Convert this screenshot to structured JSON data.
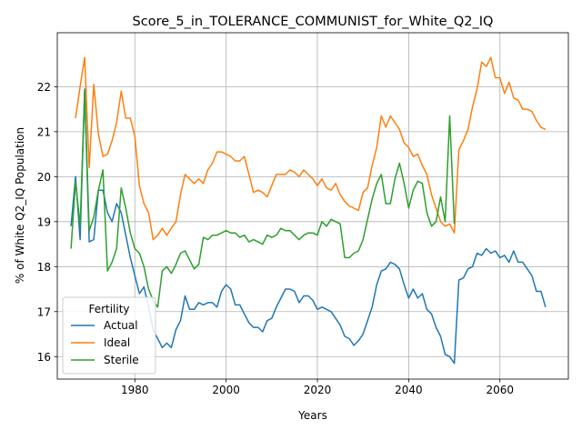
{
  "chart_data": {
    "type": "line",
    "title": "Score_5_in_TOLERANCE_COMMUNIST_for_White_Q2_IQ",
    "xlabel": "Years",
    "ylabel": "% of White Q2_IQ Population",
    "xlim": [
      1963,
      2075
    ],
    "ylim": [
      15.5,
      23.2
    ],
    "x_ticks": [
      1980,
      2000,
      2020,
      2040,
      2060
    ],
    "y_ticks": [
      16,
      17,
      18,
      19,
      20,
      21,
      22
    ],
    "grid": true,
    "legend": {
      "title": "Fertility",
      "position": "lower-left"
    },
    "series": [
      {
        "name": "Actual",
        "color": "#1f77b4",
        "x": [
          1966,
          1967,
          1968,
          1969,
          1970,
          1971,
          1972,
          1973,
          1974,
          1975,
          1976,
          1977,
          1978,
          1979,
          1980,
          1981,
          1982,
          1983,
          1984,
          1985,
          1986,
          1987,
          1988,
          1989,
          1990,
          1991,
          1992,
          1993,
          1994,
          1995,
          1996,
          1997,
          1998,
          1999,
          2000,
          2001,
          2002,
          2003,
          2004,
          2005,
          2006,
          2007,
          2008,
          2009,
          2010,
          2011,
          2012,
          2013,
          2014,
          2015,
          2016,
          2017,
          2018,
          2019,
          2020,
          2021,
          2022,
          2023,
          2024,
          2025,
          2026,
          2027,
          2028,
          2029,
          2030,
          2031,
          2032,
          2033,
          2034,
          2035,
          2036,
          2037,
          2038,
          2039,
          2040,
          2041,
          2042,
          2043,
          2044,
          2045,
          2046,
          2047,
          2048,
          2049,
          2050,
          2051,
          2052,
          2053,
          2054,
          2055,
          2056,
          2057,
          2058,
          2059,
          2060,
          2061,
          2062,
          2063,
          2064,
          2065,
          2066,
          2067,
          2068,
          2069,
          2070
        ],
        "y": [
          18.9,
          20.0,
          18.6,
          21.95,
          18.55,
          18.6,
          19.7,
          19.7,
          19.2,
          19.0,
          19.4,
          19.2,
          18.7,
          18.2,
          17.8,
          17.4,
          17.55,
          17.1,
          16.6,
          16.4,
          16.2,
          16.3,
          16.2,
          16.6,
          16.8,
          17.35,
          17.05,
          17.05,
          17.2,
          17.15,
          17.2,
          17.2,
          17.1,
          17.45,
          17.6,
          17.5,
          17.15,
          17.15,
          16.95,
          16.75,
          16.65,
          16.65,
          16.55,
          16.8,
          16.85,
          17.1,
          17.3,
          17.5,
          17.5,
          17.45,
          17.2,
          17.35,
          17.35,
          17.25,
          17.05,
          17.1,
          17.05,
          17.0,
          16.85,
          16.7,
          16.45,
          16.4,
          16.25,
          16.35,
          16.5,
          16.8,
          17.1,
          17.6,
          17.9,
          17.95,
          18.1,
          18.05,
          17.95,
          17.6,
          17.3,
          17.5,
          17.3,
          17.4,
          17.05,
          16.95,
          16.65,
          16.45,
          16.05,
          16.0,
          15.85,
          17.7,
          17.75,
          17.95,
          18.0,
          18.3,
          18.25,
          18.4,
          18.3,
          18.35,
          18.2,
          18.25,
          18.1,
          18.35,
          18.1,
          18.1,
          17.95,
          17.8,
          17.45,
          17.45,
          17.1
        ]
      },
      {
        "name": "Ideal",
        "color": "#ff7f0e",
        "x": [
          1967,
          1968,
          1969,
          1970,
          1971,
          1972,
          1973,
          1974,
          1975,
          1976,
          1977,
          1978,
          1979,
          1980,
          1981,
          1982,
          1983,
          1984,
          1985,
          1986,
          1987,
          1988,
          1989,
          1990,
          1991,
          1992,
          1993,
          1994,
          1995,
          1996,
          1997,
          1998,
          1999,
          2000,
          2001,
          2002,
          2003,
          2004,
          2005,
          2006,
          2007,
          2008,
          2009,
          2010,
          2011,
          2012,
          2013,
          2014,
          2015,
          2016,
          2017,
          2018,
          2019,
          2020,
          2021,
          2022,
          2023,
          2024,
          2025,
          2026,
          2027,
          2028,
          2029,
          2030,
          2031,
          2032,
          2033,
          2034,
          2035,
          2036,
          2037,
          2038,
          2039,
          2040,
          2041,
          2042,
          2043,
          2044,
          2045,
          2046,
          2047,
          2048,
          2049,
          2050,
          2051,
          2052,
          2053,
          2054,
          2055,
          2056,
          2057,
          2058,
          2059,
          2060,
          2061,
          2062,
          2063,
          2064,
          2065,
          2066,
          2067,
          2068,
          2069,
          2070
        ],
        "y": [
          21.3,
          22.0,
          22.65,
          20.2,
          22.05,
          20.95,
          20.45,
          20.5,
          20.8,
          21.2,
          21.9,
          21.3,
          21.3,
          20.9,
          19.8,
          19.4,
          19.2,
          18.6,
          18.7,
          18.85,
          18.7,
          18.85,
          19.0,
          19.6,
          20.05,
          19.95,
          19.85,
          19.95,
          19.85,
          20.15,
          20.3,
          20.55,
          20.55,
          20.5,
          20.45,
          20.35,
          20.35,
          20.45,
          20.05,
          19.65,
          19.7,
          19.65,
          19.55,
          19.8,
          20.05,
          20.05,
          20.05,
          20.15,
          20.1,
          20.0,
          20.15,
          20.05,
          19.95,
          19.8,
          19.95,
          19.75,
          19.7,
          19.85,
          19.6,
          19.45,
          19.35,
          19.3,
          19.25,
          19.65,
          19.75,
          20.25,
          20.65,
          21.35,
          21.1,
          21.35,
          21.2,
          21.05,
          20.75,
          20.65,
          20.45,
          20.5,
          20.25,
          20.05,
          19.6,
          19.3,
          19.0,
          18.9,
          18.95,
          18.75,
          20.6,
          20.8,
          21.05,
          21.55,
          21.95,
          22.55,
          22.45,
          22.65,
          22.2,
          22.2,
          21.85,
          22.1,
          21.75,
          21.7,
          21.5,
          21.5,
          21.45,
          21.25,
          21.1,
          21.05
        ]
      },
      {
        "name": "Sterile",
        "color": "#2ca02c",
        "x": [
          1966,
          1967,
          1968,
          1969,
          1970,
          1971,
          1972,
          1973,
          1974,
          1975,
          1976,
          1977,
          1978,
          1979,
          1980,
          1981,
          1982,
          1983,
          1984,
          1985,
          1986,
          1987,
          1988,
          1989,
          1990,
          1991,
          1992,
          1993,
          1994,
          1995,
          1996,
          1997,
          1998,
          1999,
          2000,
          2001,
          2002,
          2003,
          2004,
          2005,
          2006,
          2007,
          2008,
          2009,
          2010,
          2011,
          2012,
          2013,
          2014,
          2015,
          2016,
          2017,
          2018,
          2019,
          2020,
          2021,
          2022,
          2023,
          2024,
          2025,
          2026,
          2027,
          2028,
          2029,
          2030,
          2031,
          2032,
          2033,
          2034,
          2035,
          2036,
          2037,
          2038,
          2039,
          2040,
          2041,
          2042,
          2043,
          2044,
          2045,
          2046,
          2047,
          2048,
          2049,
          2050
        ],
        "y": [
          18.4,
          19.9,
          18.9,
          21.9,
          18.8,
          19.1,
          19.7,
          20.15,
          17.9,
          18.1,
          18.4,
          19.75,
          19.3,
          18.75,
          18.4,
          18.3,
          18.0,
          17.5,
          17.25,
          17.1,
          17.9,
          18.0,
          17.85,
          18.05,
          18.3,
          18.35,
          18.15,
          17.95,
          18.05,
          18.65,
          18.6,
          18.7,
          18.7,
          18.75,
          18.8,
          18.75,
          18.75,
          18.65,
          18.7,
          18.55,
          18.6,
          18.55,
          18.5,
          18.7,
          18.65,
          18.7,
          18.85,
          18.8,
          18.8,
          18.7,
          18.6,
          18.7,
          18.75,
          18.75,
          18.7,
          19.0,
          18.9,
          19.05,
          19.0,
          18.95,
          18.2,
          18.2,
          18.3,
          18.35,
          18.6,
          19.05,
          19.5,
          19.85,
          20.05,
          19.4,
          19.4,
          19.95,
          20.3,
          19.85,
          19.3,
          19.7,
          19.9,
          19.85,
          19.2,
          18.9,
          19.0,
          19.55,
          19.0,
          21.35,
          18.95
        ]
      }
    ]
  }
}
